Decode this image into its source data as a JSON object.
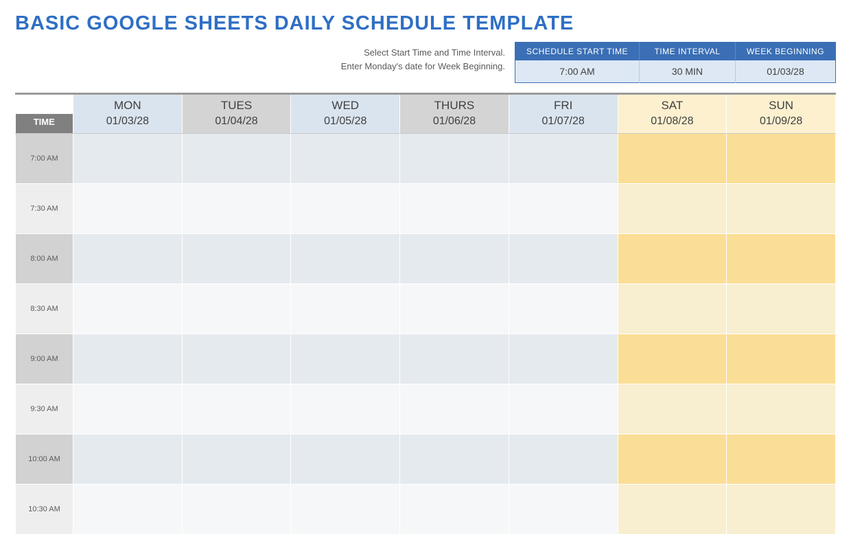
{
  "title": "BASIC GOOGLE SHEETS DAILY SCHEDULE TEMPLATE",
  "instructions": {
    "line1": "Select Start Time and Time Interval.",
    "line2": "Enter Monday's date for Week Beginning."
  },
  "config": {
    "headers": {
      "start_time": "SCHEDULE START TIME",
      "interval": "TIME INTERVAL",
      "week_begin": "WEEK BEGINNING"
    },
    "values": {
      "start_time": "7:00 AM",
      "interval": "30 MIN",
      "week_begin": "01/03/28"
    }
  },
  "schedule": {
    "time_label": "TIME",
    "days": [
      {
        "name": "MON",
        "date": "01/03/28",
        "kind": "weekday",
        "hdr": "blue"
      },
      {
        "name": "TUES",
        "date": "01/04/28",
        "kind": "weekday",
        "hdr": "gray"
      },
      {
        "name": "WED",
        "date": "01/05/28",
        "kind": "weekday",
        "hdr": "blue"
      },
      {
        "name": "THURS",
        "date": "01/06/28",
        "kind": "weekday",
        "hdr": "gray"
      },
      {
        "name": "FRI",
        "date": "01/07/28",
        "kind": "weekday",
        "hdr": "blue"
      },
      {
        "name": "SAT",
        "date": "01/08/28",
        "kind": "weekend",
        "hdr": "cream"
      },
      {
        "name": "SUN",
        "date": "01/09/28",
        "kind": "weekend",
        "hdr": "cream"
      }
    ],
    "time_slots": [
      "7:00 AM",
      "7:30 AM",
      "8:00 AM",
      "8:30 AM",
      "9:00 AM",
      "9:30 AM",
      "10:00 AM",
      "10:30 AM"
    ]
  },
  "colors": {
    "title": "#2f6fc4",
    "config_header_bg": "#3b6fb5",
    "config_value_bg": "#dde8f4",
    "hdr_blue": "#dae4ef",
    "hdr_gray": "#d5d4d4",
    "hdr_cream": "#fdf0cf",
    "time_hdr_bg": "#808080",
    "tc_dark": "#d2d2d2",
    "tc_light": "#eeeeee",
    "wk_dark": "#e5eaef",
    "wk_light": "#f6f7f8",
    "we_dark": "#fbde95",
    "we_light": "#f8eed0",
    "border_top": "#9a9a9a"
  }
}
